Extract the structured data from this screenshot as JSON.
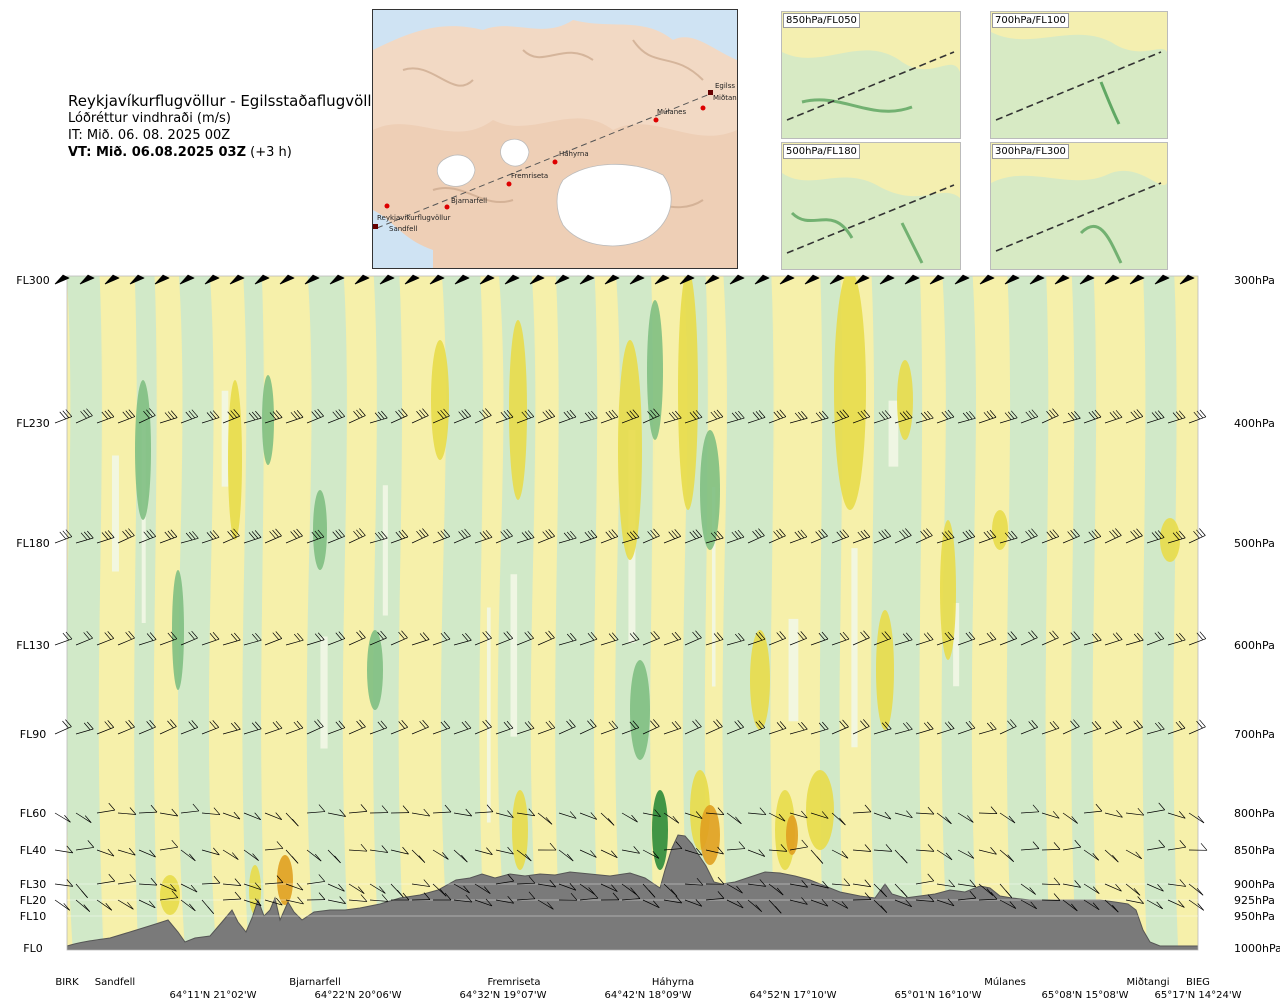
{
  "title": {
    "route": "Reykjavíkurflugvöllur - Egilsstaðaflugvöllur",
    "parameter": "Lóðréttur vindhraði (m/s)",
    "issue_time": "IT: Mið. 06. 08. 2025 00Z",
    "valid_time_bold": "VT: Mið. 06.08.2025 03Z",
    "valid_offset": "(+3 h)"
  },
  "route_map": {
    "waypoints": [
      {
        "name": "Reykjavíkurflugvöllur"
      },
      {
        "name": "Sandfell"
      },
      {
        "name": "Bjarnarfell"
      },
      {
        "name": "Fremriseta"
      },
      {
        "name": "Háhyrna"
      },
      {
        "name": "Múlanes"
      },
      {
        "name": "Miðtangi"
      },
      {
        "name": "Egilss"
      }
    ]
  },
  "mini_maps": [
    {
      "label": "850hPa/FL050"
    },
    {
      "label": "700hPa/FL100"
    },
    {
      "label": "500hPa/FL180"
    },
    {
      "label": "300hPa/FL300"
    }
  ],
  "chart_data": {
    "type": "heatmap",
    "title": "Lóðréttur vindhraði (m/s)",
    "xlabel": "",
    "ylabel": "",
    "y_levels_left": [
      "FL300",
      "FL230",
      "FL180",
      "FL130",
      "FL90",
      "FL60",
      "FL40",
      "FL30",
      "FL20",
      "FL10",
      "FL0"
    ],
    "y_levels_right": [
      "300hPa",
      "400hPa",
      "500hPa",
      "600hPa",
      "700hPa",
      "800hPa",
      "850hPa",
      "900hPa",
      "925hPa",
      "950hPa",
      "1000hPa"
    ],
    "x_top_labels": [
      "BIRK",
      "Sandfell",
      "Bjarnarfell",
      "Fremriseta",
      "Háhyrna",
      "Múlanes",
      "Miðtangi",
      "BIEG"
    ],
    "x_coord_labels": [
      "64°11'N 21°02'W",
      "64°22'N 20°06'W",
      "64°32'N 19°07'W",
      "64°42'N 18°09'W",
      "64°52'N 17°10'W",
      "65°01'N 16°10'W",
      "65°08'N 15°08'W",
      "65°17'N 14°24'W"
    ],
    "colors": {
      "strong_down": "#2e8b3a",
      "down": "#7fbf82",
      "weak_down": "#cfe8c9",
      "neutral": "#f2f7e6",
      "weak_up": "#f6efaa",
      "up": "#e8dc4a",
      "strong_up": "#e0a020",
      "terrain": "#7a7a7a"
    }
  }
}
